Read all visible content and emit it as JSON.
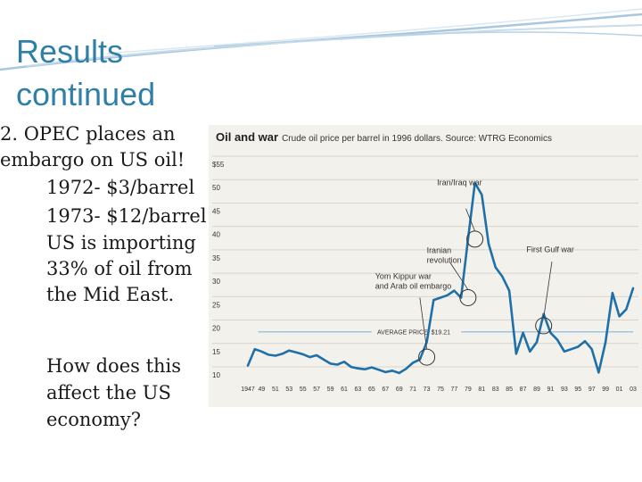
{
  "slide": {
    "title": "Results\ncontinued",
    "bullets": {
      "main": "2. OPEC places an\nembargo on US oil!",
      "items": [
        "1972- $3/barrel",
        "1973- $12/barrel"
      ],
      "wrapped_item": "US is importing\n33% of oil from\nthe Mid East."
    },
    "question": "How does this\naffect the US\neconomy?"
  },
  "colors": {
    "title": "#2f7fa6",
    "line": "#1f6fa8",
    "average_line": "#9fc4e6",
    "chart_background": "#f3f1ec",
    "deco_wave": "#a9c7de"
  },
  "chart_data": {
    "type": "line",
    "title": "Oil and war",
    "subtitle": "Crude oil price per barrel in 1996 dollars. Source: WTRG Economics",
    "xlim": [
      1947,
      2003
    ],
    "ylim": [
      10,
      55
    ],
    "x_ticks": [
      {
        "value": 1947,
        "label": "1947"
      },
      {
        "value": 1949,
        "label": "49"
      },
      {
        "value": 1951,
        "label": "51"
      },
      {
        "value": 1953,
        "label": "53"
      },
      {
        "value": 1955,
        "label": "55"
      },
      {
        "value": 1957,
        "label": "57"
      },
      {
        "value": 1959,
        "label": "59"
      },
      {
        "value": 1961,
        "label": "61"
      },
      {
        "value": 1963,
        "label": "63"
      },
      {
        "value": 1965,
        "label": "65"
      },
      {
        "value": 1967,
        "label": "67"
      },
      {
        "value": 1969,
        "label": "69"
      },
      {
        "value": 1971,
        "label": "71"
      },
      {
        "value": 1973,
        "label": "73"
      },
      {
        "value": 1975,
        "label": "75"
      },
      {
        "value": 1977,
        "label": "77"
      },
      {
        "value": 1979,
        "label": "79"
      },
      {
        "value": 1981,
        "label": "81"
      },
      {
        "value": 1983,
        "label": "83"
      },
      {
        "value": 1985,
        "label": "85"
      },
      {
        "value": 1987,
        "label": "87"
      },
      {
        "value": 1989,
        "label": "89"
      },
      {
        "value": 1991,
        "label": "91"
      },
      {
        "value": 1993,
        "label": "93"
      },
      {
        "value": 1995,
        "label": "95"
      },
      {
        "value": 1997,
        "label": "97"
      },
      {
        "value": 1999,
        "label": "99"
      },
      {
        "value": 2001,
        "label": "01"
      },
      {
        "value": 2003,
        "label": "03"
      }
    ],
    "y_ticks": [
      {
        "value": 55,
        "label": "$55"
      },
      {
        "value": 50,
        "label": "50"
      },
      {
        "value": 45,
        "label": "45"
      },
      {
        "value": 40,
        "label": "40"
      },
      {
        "value": 35,
        "label": "35"
      },
      {
        "value": 30,
        "label": "30"
      },
      {
        "value": 25,
        "label": "25"
      },
      {
        "value": 20,
        "label": "20"
      },
      {
        "value": 15,
        "label": "15"
      },
      {
        "value": 10,
        "label": "10"
      }
    ],
    "series": [
      {
        "x": [
          1947,
          1948,
          1949,
          1950,
          1951,
          1952,
          1953,
          1954,
          1955,
          1956,
          1957,
          1958,
          1959,
          1960,
          1961,
          1962,
          1963,
          1964,
          1965,
          1966,
          1967,
          1968,
          1969,
          1970,
          1971,
          1972,
          1973,
          1974,
          1975,
          1976,
          1977,
          1978,
          1979,
          1980,
          1981,
          1982,
          1983,
          1984,
          1985,
          1986,
          1987,
          1988,
          1989,
          1990,
          1991,
          1992,
          1993,
          1994,
          1995,
          1996,
          1997,
          1998,
          1999,
          2000,
          2001,
          2002,
          2003
        ],
        "y": [
          12,
          15.5,
          15,
          14.3,
          14.1,
          14.5,
          15.2,
          14.8,
          14.4,
          13.8,
          14.2,
          13.3,
          12.4,
          12.2,
          12.8,
          11.7,
          11.4,
          11.2,
          11.6,
          11.1,
          10.6,
          10.9,
          10.4,
          11.3,
          12.6,
          13.3,
          17,
          26,
          26.5,
          27,
          28,
          26.5,
          39,
          51,
          48.5,
          38,
          33,
          31,
          28,
          14.5,
          19,
          15,
          17,
          23,
          19,
          17.5,
          15,
          15.5,
          16,
          17.2,
          15.5,
          10.5,
          17,
          27.5,
          22.5,
          24,
          28.5
        ]
      }
    ],
    "average_line": {
      "value": 19.21,
      "label": "AVERAGE PRICE: $19.21"
    },
    "annotations": [
      {
        "label": "Iran/Iraq war",
        "x": 1980,
        "y": 39
      },
      {
        "label": "Iranian\nrevolution",
        "x": 1979,
        "y": 26.5
      },
      {
        "label": "Yom Kippur war\nand Arab oil embargo",
        "x": 1973,
        "y": 13.8
      },
      {
        "label": "First Gulf war",
        "x": 1990,
        "y": 20.5
      }
    ]
  }
}
